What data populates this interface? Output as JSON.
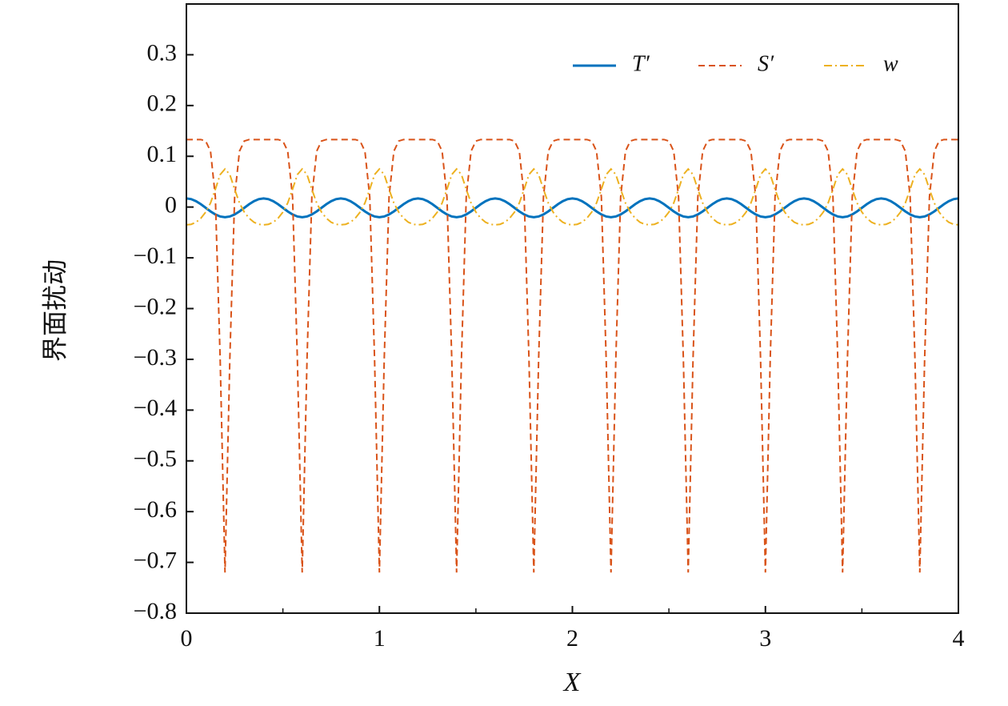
{
  "chart_data": {
    "type": "line",
    "xlabel": "X",
    "ylabel": "界面扰动",
    "x": [
      0,
      0.025,
      0.05,
      0.075,
      0.1,
      0.125,
      0.15,
      0.175,
      0.2,
      0.225,
      0.25,
      0.275,
      0.3,
      0.325,
      0.35,
      0.375,
      0.4,
      0.425,
      0.45,
      0.475,
      0.5,
      0.525,
      0.55,
      0.575,
      0.6,
      0.625,
      0.65,
      0.675,
      0.7,
      0.725,
      0.75,
      0.775,
      0.8,
      0.825,
      0.85,
      0.875,
      0.9,
      0.925,
      0.95,
      0.975,
      1,
      1.025,
      1.05,
      1.075,
      1.1,
      1.125,
      1.15,
      1.175,
      1.2,
      1.225,
      1.25,
      1.275,
      1.3,
      1.325,
      1.35,
      1.375,
      1.4,
      1.425,
      1.45,
      1.475,
      1.5,
      1.525,
      1.55,
      1.575,
      1.6,
      1.625,
      1.65,
      1.675,
      1.7,
      1.725,
      1.75,
      1.775,
      1.8,
      1.825,
      1.85,
      1.875,
      1.9,
      1.925,
      1.95,
      1.975,
      2,
      2.025,
      2.05,
      2.075,
      2.1,
      2.125,
      2.15,
      2.175,
      2.2,
      2.225,
      2.25,
      2.275,
      2.3,
      2.325,
      2.35,
      2.375,
      2.4,
      2.425,
      2.45,
      2.475,
      2.5,
      2.525,
      2.55,
      2.575,
      2.6,
      2.625,
      2.65,
      2.675,
      2.7,
      2.725,
      2.75,
      2.775,
      2.8,
      2.825,
      2.85,
      2.875,
      2.9,
      2.925,
      2.95,
      2.975,
      3,
      3.025,
      3.05,
      3.075,
      3.1,
      3.125,
      3.15,
      3.175,
      3.2,
      3.225,
      3.25,
      3.275,
      3.3,
      3.325,
      3.35,
      3.375,
      3.4,
      3.425,
      3.45,
      3.475,
      3.5,
      3.525,
      3.55,
      3.575,
      3.6,
      3.625,
      3.65,
      3.675,
      3.7,
      3.725,
      3.75,
      3.775,
      3.8,
      3.825,
      3.85,
      3.875,
      3.9,
      3.925,
      3.95,
      3.975,
      4
    ],
    "series": [
      {
        "name": "T′",
        "color": "#0072BD",
        "style": "solid",
        "values": [
          0.017,
          0.0156,
          0.0116,
          0.0056,
          -0.0015,
          -0.0086,
          -0.0146,
          -0.0186,
          -0.02,
          -0.0186,
          -0.0146,
          -0.0086,
          -0.0015,
          0.0056,
          0.0116,
          0.0156,
          0.017,
          0.0156,
          0.0116,
          0.0056,
          -0.0015,
          -0.0086,
          -0.0146,
          -0.0186,
          -0.02,
          -0.0186,
          -0.0146,
          -0.0086,
          -0.0015,
          0.0056,
          0.0116,
          0.0156,
          0.017,
          0.0156,
          0.0116,
          0.0056,
          -0.0015,
          -0.0086,
          -0.0146,
          -0.0186,
          -0.02,
          -0.0186,
          -0.0146,
          -0.0086,
          -0.0015,
          0.0056,
          0.0116,
          0.0156,
          0.017,
          0.0156,
          0.0116,
          0.0056,
          -0.0015,
          -0.0086,
          -0.0146,
          -0.0186,
          -0.02,
          -0.0186,
          -0.0146,
          -0.0086,
          -0.0015,
          0.0056,
          0.0116,
          0.0156,
          0.017,
          0.0156,
          0.0116,
          0.0056,
          -0.0015,
          -0.0086,
          -0.0146,
          -0.0186,
          -0.02,
          -0.0186,
          -0.0146,
          -0.0086,
          -0.0015,
          0.0056,
          0.0116,
          0.0156,
          0.017,
          0.0156,
          0.0116,
          0.0056,
          -0.0015,
          -0.0086,
          -0.0146,
          -0.0186,
          -0.02,
          -0.0186,
          -0.0146,
          -0.0086,
          -0.0015,
          0.0056,
          0.0116,
          0.0156,
          0.017,
          0.0156,
          0.0116,
          0.0056,
          -0.0015,
          -0.0086,
          -0.0146,
          -0.0186,
          -0.02,
          -0.0186,
          -0.0146,
          -0.0086,
          -0.0015,
          0.0056,
          0.0116,
          0.0156,
          0.017,
          0.0156,
          0.0116,
          0.0056,
          -0.0015,
          -0.0086,
          -0.0146,
          -0.0186,
          -0.02,
          -0.0186,
          -0.0146,
          -0.0086,
          -0.0015,
          0.0056,
          0.0116,
          0.0156,
          0.017,
          0.0156,
          0.0116,
          0.0056,
          -0.0015,
          -0.0086,
          -0.0146,
          -0.0186,
          -0.02,
          -0.0186,
          -0.0146,
          -0.0086,
          -0.0015,
          0.0056,
          0.0116,
          0.0156,
          0.017,
          0.0156,
          0.0116,
          0.0056,
          -0.0015,
          -0.0086,
          -0.0146,
          -0.0186,
          -0.02,
          -0.0186,
          -0.0146,
          -0.0086,
          -0.0015,
          0.0056,
          0.0116,
          0.0156,
          0.017
        ]
      },
      {
        "name": "S′",
        "color": "#D95319",
        "style": "dashed",
        "values": [
          0.133,
          0.133,
          0.133,
          0.133,
          0.13,
          0.11,
          0.02,
          -0.3,
          -0.72,
          -0.3,
          0.02,
          0.11,
          0.13,
          0.133,
          0.133,
          0.133,
          0.133,
          0.133,
          0.133,
          0.133,
          0.13,
          0.11,
          0.02,
          -0.3,
          -0.72,
          -0.3,
          0.02,
          0.11,
          0.13,
          0.133,
          0.133,
          0.133,
          0.133,
          0.133,
          0.133,
          0.133,
          0.13,
          0.11,
          0.02,
          -0.3,
          -0.72,
          -0.3,
          0.02,
          0.11,
          0.13,
          0.133,
          0.133,
          0.133,
          0.133,
          0.133,
          0.133,
          0.133,
          0.13,
          0.11,
          0.02,
          -0.3,
          -0.72,
          -0.3,
          0.02,
          0.11,
          0.13,
          0.133,
          0.133,
          0.133,
          0.133,
          0.133,
          0.133,
          0.133,
          0.13,
          0.11,
          0.02,
          -0.3,
          -0.72,
          -0.3,
          0.02,
          0.11,
          0.13,
          0.133,
          0.133,
          0.133,
          0.133,
          0.133,
          0.133,
          0.133,
          0.13,
          0.11,
          0.02,
          -0.3,
          -0.72,
          -0.3,
          0.02,
          0.11,
          0.13,
          0.133,
          0.133,
          0.133,
          0.133,
          0.133,
          0.133,
          0.133,
          0.13,
          0.11,
          0.02,
          -0.3,
          -0.72,
          -0.3,
          0.02,
          0.11,
          0.13,
          0.133,
          0.133,
          0.133,
          0.133,
          0.133,
          0.133,
          0.133,
          0.13,
          0.11,
          0.02,
          -0.3,
          -0.72,
          -0.3,
          0.02,
          0.11,
          0.13,
          0.133,
          0.133,
          0.133,
          0.133,
          0.133,
          0.133,
          0.133,
          0.13,
          0.11,
          0.02,
          -0.3,
          -0.72,
          -0.3,
          0.02,
          0.11,
          0.13,
          0.133,
          0.133,
          0.133,
          0.133,
          0.133,
          0.133,
          0.133,
          0.13,
          0.11,
          0.02,
          -0.3,
          -0.72,
          -0.3,
          0.02,
          0.11,
          0.13,
          0.133,
          0.133,
          0.133,
          0.133
        ]
      },
      {
        "name": "w",
        "color": "#EDB120",
        "style": "dashdot",
        "values": [
          -0.035,
          -0.034,
          -0.03,
          -0.022,
          -0.01,
          0.008,
          0.035,
          0.064,
          0.075,
          0.064,
          0.035,
          0.008,
          -0.01,
          -0.022,
          -0.03,
          -0.034,
          -0.035,
          -0.034,
          -0.03,
          -0.022,
          -0.01,
          0.008,
          0.035,
          0.064,
          0.075,
          0.064,
          0.035,
          0.008,
          -0.01,
          -0.022,
          -0.03,
          -0.034,
          -0.035,
          -0.034,
          -0.03,
          -0.022,
          -0.01,
          0.008,
          0.035,
          0.064,
          0.075,
          0.064,
          0.035,
          0.008,
          -0.01,
          -0.022,
          -0.03,
          -0.034,
          -0.035,
          -0.034,
          -0.03,
          -0.022,
          -0.01,
          0.008,
          0.035,
          0.064,
          0.075,
          0.064,
          0.035,
          0.008,
          -0.01,
          -0.022,
          -0.03,
          -0.034,
          -0.035,
          -0.034,
          -0.03,
          -0.022,
          -0.01,
          0.008,
          0.035,
          0.064,
          0.075,
          0.064,
          0.035,
          0.008,
          -0.01,
          -0.022,
          -0.03,
          -0.034,
          -0.035,
          -0.034,
          -0.03,
          -0.022,
          -0.01,
          0.008,
          0.035,
          0.064,
          0.075,
          0.064,
          0.035,
          0.008,
          -0.01,
          -0.022,
          -0.03,
          -0.034,
          -0.035,
          -0.034,
          -0.03,
          -0.022,
          -0.01,
          0.008,
          0.035,
          0.064,
          0.075,
          0.064,
          0.035,
          0.008,
          -0.01,
          -0.022,
          -0.03,
          -0.034,
          -0.035,
          -0.034,
          -0.03,
          -0.022,
          -0.01,
          0.008,
          0.035,
          0.064,
          0.075,
          0.064,
          0.035,
          0.008,
          -0.01,
          -0.022,
          -0.03,
          -0.034,
          -0.035,
          -0.034,
          -0.03,
          -0.022,
          -0.01,
          0.008,
          0.035,
          0.064,
          0.075,
          0.064,
          0.035,
          0.008,
          -0.01,
          -0.022,
          -0.03,
          -0.034,
          -0.035,
          -0.034,
          -0.03,
          -0.022,
          -0.01,
          0.008,
          0.035,
          0.064,
          0.075,
          0.064,
          0.035,
          0.008,
          -0.01,
          -0.022,
          -0.03,
          -0.034,
          -0.035
        ]
      }
    ],
    "xlim": [
      0,
      4
    ],
    "xticks": [
      0,
      1,
      2,
      3,
      4
    ],
    "xminorticks": [
      0.5,
      1.5,
      2.5,
      3.5
    ],
    "ylim": [
      -0.8,
      0.4
    ],
    "yticks": [
      {
        "value": -0.8,
        "label": "−0.8"
      },
      {
        "value": -0.7,
        "label": "−0.7"
      },
      {
        "value": -0.6,
        "label": "−0.6"
      },
      {
        "value": -0.5,
        "label": "−0.5"
      },
      {
        "value": -0.4,
        "label": "−0.4"
      },
      {
        "value": -0.3,
        "label": "−0.3"
      },
      {
        "value": -0.2,
        "label": "−0.2"
      },
      {
        "value": -0.1,
        "label": "−0.1"
      },
      0,
      0.1,
      0.2,
      0.3
    ],
    "legend": "upper right",
    "grid": false
  }
}
